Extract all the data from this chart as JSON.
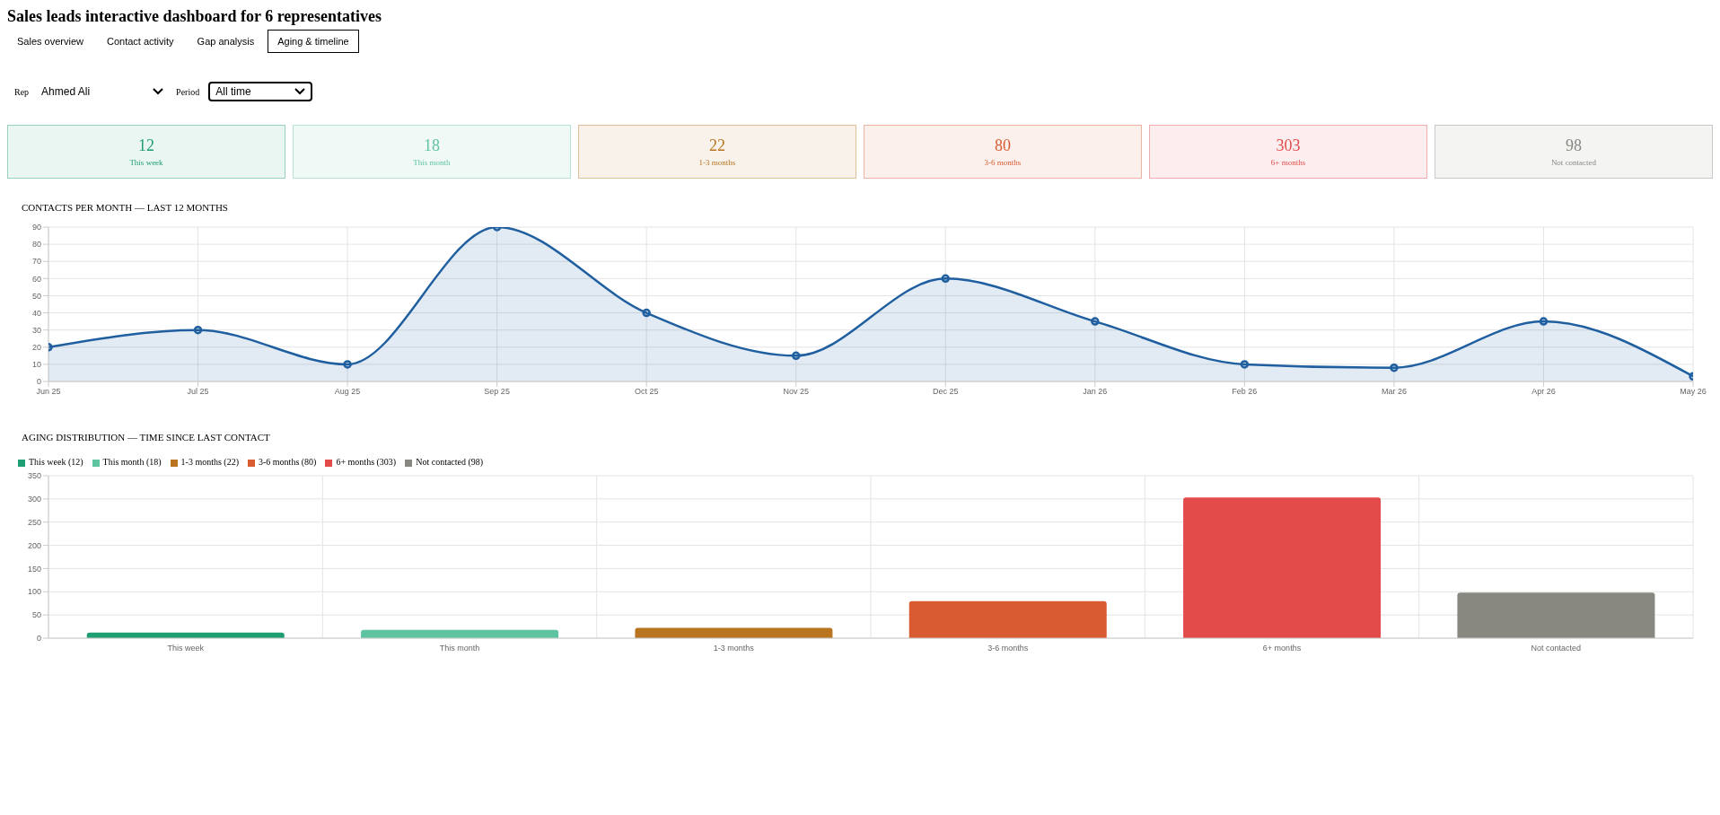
{
  "chart_data": [
    {
      "type": "other",
      "title": "Sales leads interactive dashboard for 6 representatives",
      "annotations": [
        "Sales overview",
        "Contact activity",
        "Gap analysis",
        "Aging & timeline",
        "Rep",
        "Ahmed Ali",
        "Period",
        "All time"
      ]
    },
    {
      "type": "other",
      "annotations": [
        "12",
        "This week",
        "18",
        "This month",
        "22",
        "1-3 months",
        "80",
        "3-6 months",
        "303",
        "6+ months",
        "98",
        "Not contacted"
      ],
      "colors": [
        "#1f9e72",
        "#5ec4a0",
        "#b8741e",
        "#d85b32",
        "#e24b4a",
        "#888780"
      ]
    },
    {
      "type": "area",
      "title": "CONTACTS PER MONTH — LAST 12 MONTHS",
      "categories": [
        "Jun 25",
        "Jul 25",
        "Aug 25",
        "Sep 25",
        "Oct 25",
        "Nov 25",
        "Dec 25",
        "Jan 26",
        "Feb 26",
        "Mar 26",
        "Apr 26",
        "May 26"
      ],
      "values": [
        20,
        30,
        10,
        90,
        40,
        15,
        60,
        35,
        10,
        8,
        35,
        3
      ],
      "color": "#1f5fa0",
      "ylim": [
        0,
        90
      ],
      "yticks": [
        0,
        10,
        20,
        30,
        40,
        50,
        60,
        70,
        80,
        90
      ],
      "grid": true,
      "marker": "circle"
    },
    {
      "type": "bar",
      "title": "AGING DISTRIBUTION — TIME SINCE LAST CONTACT",
      "categories": [
        "This week",
        "This month",
        "1-3 months",
        "3-6 months",
        "6+ months",
        "Not contacted"
      ],
      "stacked": true,
      "series": [
        {
          "name": "This week (12)",
          "color": "#1f9e72",
          "values": [
            12,
            null,
            null,
            null,
            null,
            null
          ]
        },
        {
          "name": "This month (18)",
          "color": "#5ec4a0",
          "values": [
            null,
            18,
            null,
            null,
            null,
            null
          ]
        },
        {
          "name": "1-3 months (22)",
          "color": "#b8741e",
          "values": [
            null,
            null,
            22,
            null,
            null,
            null
          ]
        },
        {
          "name": "3-6 months (80)",
          "color": "#d85b32",
          "values": [
            null,
            null,
            null,
            80,
            null,
            null
          ]
        },
        {
          "name": "6+ months (303)",
          "color": "#e24b4a",
          "values": [
            null,
            null,
            null,
            null,
            303,
            null
          ]
        },
        {
          "name": "Not contacted (98)",
          "color": "#888780",
          "values": [
            null,
            null,
            null,
            null,
            null,
            98
          ]
        }
      ],
      "ylim": [
        0,
        350
      ],
      "yticks": [
        0,
        50,
        100,
        150,
        200,
        250,
        300,
        350
      ],
      "grid": true,
      "legend": "top left"
    }
  ]
}
